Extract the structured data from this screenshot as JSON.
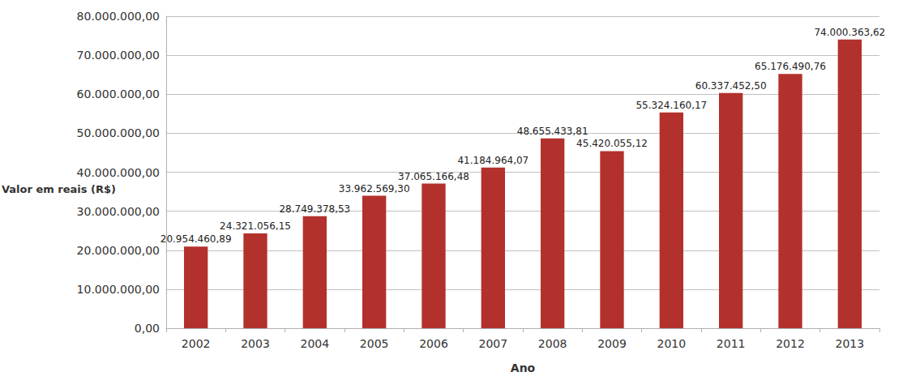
{
  "chart_data": {
    "type": "bar",
    "ylabel": "Valor em reais (R$)",
    "xlabel": "Ano",
    "categories": [
      "2002",
      "2003",
      "2004",
      "2005",
      "2006",
      "2007",
      "2008",
      "2009",
      "2010",
      "2011",
      "2012",
      "2013"
    ],
    "values": [
      20954460.89,
      24321056.15,
      28749378.53,
      33962569.3,
      37065166.48,
      41184964.07,
      48655433.81,
      45420055.12,
      55324160.17,
      60337452.5,
      65176490.76,
      74000363.62
    ],
    "value_labels": [
      "20.954.460,89",
      "24.321.056,15",
      "28.749.378,53",
      "33.962.569,30",
      "37.065.166,48",
      "41.184.964,07",
      "48.655.433,81",
      "45.420.055,12",
      "55.324.160,17",
      "60.337.452,50",
      "65.176.490,76",
      "74.000.363,62"
    ],
    "color": "#b3312c",
    "ylim": [
      0,
      80000000
    ],
    "yticks": [
      {
        "value": 0,
        "label": "0,00"
      },
      {
        "value": 10000000,
        "label": "10.000.000,00"
      },
      {
        "value": 20000000,
        "label": "20.000.000,00"
      },
      {
        "value": 30000000,
        "label": "30.000.000,00"
      },
      {
        "value": 40000000,
        "label": "40.000.000,00"
      },
      {
        "value": 50000000,
        "label": "50.000.000,00"
      },
      {
        "value": 60000000,
        "label": "60.000.000,00"
      },
      {
        "value": 70000000,
        "label": "70.000.000,00"
      },
      {
        "value": 80000000,
        "label": "80.000.000,00"
      }
    ],
    "grid": true,
    "data_labels": true
  }
}
